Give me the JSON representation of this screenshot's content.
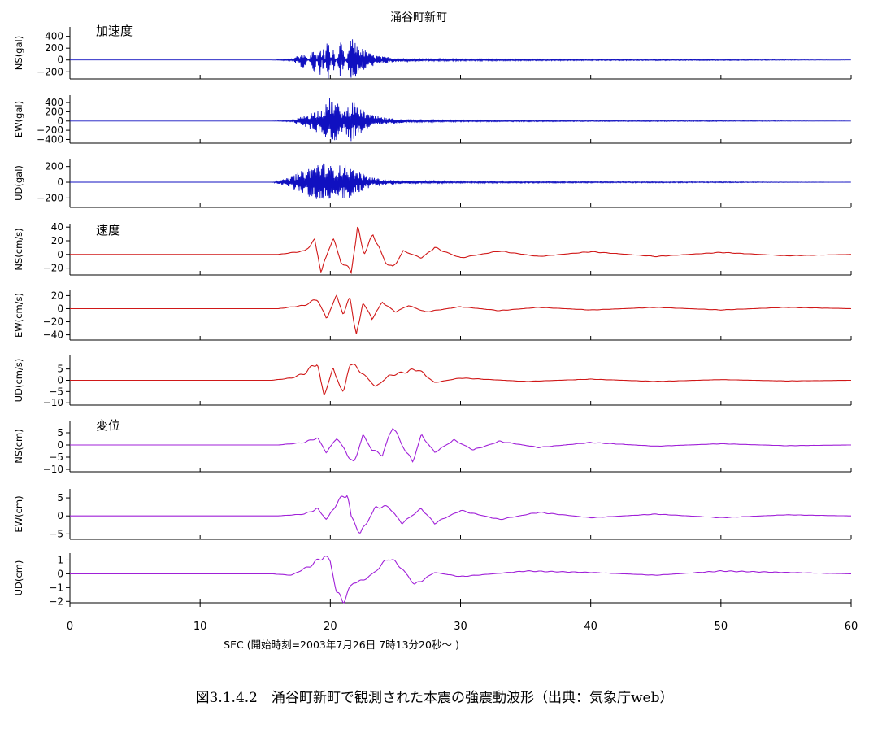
{
  "figure_caption": "図3.1.4.2　涌谷町新町で観測された本震の強震動波形（出典：気象庁web）",
  "chart_data": {
    "type": "line",
    "title": "涌谷町新町",
    "xlabel": "SEC (開始時刻=2003年7月26日 7時13分20秒～ )",
    "xlim": [
      0,
      60
    ],
    "x_ticks": [
      0,
      10,
      20,
      30,
      40,
      50,
      60
    ],
    "x_tick_labels": [
      "0",
      "10",
      "20",
      "30",
      "40",
      "50",
      "60"
    ],
    "grid": false,
    "groups": [
      {
        "label": "加速度",
        "color": "#1010c0"
      },
      {
        "label": "速度",
        "color": "#d01818"
      },
      {
        "label": "変位",
        "color": "#a020d8"
      }
    ],
    "panels": [
      {
        "ylabel": "NS(gal)",
        "ylim": [
          -320,
          560
        ],
        "yticks": [
          400,
          200,
          0,
          -200
        ],
        "ytick_labels": [
          "400",
          "200",
          "0",
          "−200"
        ],
        "color": "#1010c0",
        "series": {
          "name": "NS(gal)",
          "x": [
            0,
            15.5,
            17,
            18,
            18.8,
            19.2,
            19.5,
            19.8,
            20.2,
            20.8,
            21.2,
            21.6,
            22.2,
            23,
            24,
            26,
            30,
            40,
            50,
            60
          ],
          "y": [
            0,
            0,
            15,
            150,
            -240,
            300,
            -300,
            520,
            -260,
            320,
            0,
            380,
            240,
            120,
            60,
            25,
            15,
            10,
            8,
            0
          ]
        }
      },
      {
        "ylabel": "EW(gal)",
        "ylim": [
          -480,
          560
        ],
        "yticks": [
          400,
          200,
          0,
          -200,
          -400
        ],
        "ytick_labels": [
          "400",
          "200",
          "0",
          "−200",
          "−400"
        ],
        "color": "#1010c0",
        "series": {
          "name": "EW(gal)",
          "x": [
            0,
            15.5,
            17,
            18,
            19,
            19.5,
            20,
            20.5,
            21,
            21.6,
            22.2,
            23,
            24,
            26,
            30,
            40,
            50,
            60
          ],
          "y": [
            0,
            0,
            15,
            120,
            250,
            300,
            520,
            420,
            200,
            450,
            300,
            150,
            80,
            25,
            15,
            10,
            8,
            0
          ]
        }
      },
      {
        "ylabel": "UD(gal)",
        "ylim": [
          -320,
          300
        ],
        "yticks": [
          200,
          0,
          -200
        ],
        "ytick_labels": [
          "200",
          "0",
          "−200"
        ],
        "color": "#1010c0",
        "series": {
          "name": "UD(gal)",
          "x": [
            0,
            15.5,
            16.5,
            17.5,
            18.5,
            19.2,
            19.8,
            20.5,
            21,
            22,
            23,
            24,
            26,
            30,
            40,
            50,
            60
          ],
          "y": [
            0,
            0,
            40,
            120,
            200,
            280,
            220,
            200,
            240,
            150,
            70,
            40,
            20,
            12,
            8,
            6,
            0
          ]
        }
      },
      {
        "ylabel": "NS(cm/s)",
        "ylim": [
          -30,
          45
        ],
        "yticks": [
          40,
          20,
          0,
          -20
        ],
        "ytick_labels": [
          "40",
          "20",
          "0",
          "−20"
        ],
        "color": "#d01818",
        "series": {
          "name": "NS(cm/s)",
          "x": [
            0,
            16,
            18,
            18.8,
            19.3,
            20.2,
            20.8,
            21.6,
            22.1,
            22.6,
            23.3,
            24.2,
            24.8,
            25.6,
            27,
            28,
            30,
            33,
            36,
            40,
            45,
            50,
            55,
            60
          ],
          "y": [
            0,
            0,
            5,
            20,
            -25,
            25,
            -10,
            -25,
            38,
            0,
            30,
            -10,
            -20,
            5,
            -5,
            10,
            -5,
            5,
            -3,
            4,
            -3,
            3,
            -2,
            0
          ]
        }
      },
      {
        "ylabel": "EW(cm/s)",
        "ylim": [
          -48,
          28
        ],
        "yticks": [
          20,
          0,
          -20,
          -40
        ],
        "ytick_labels": [
          "20",
          "0",
          "−20",
          "−40"
        ],
        "color": "#d01818",
        "series": {
          "name": "EW(cm/s)",
          "x": [
            0,
            16,
            18,
            19,
            19.7,
            20.5,
            21,
            21.5,
            22,
            22.5,
            23.2,
            24,
            25,
            26,
            27.3,
            30,
            33,
            36,
            40,
            45,
            50,
            55,
            60
          ],
          "y": [
            0,
            0,
            5,
            15,
            -15,
            20,
            -10,
            20,
            -45,
            10,
            -15,
            10,
            -5,
            5,
            -5,
            3,
            -3,
            2,
            -2,
            2,
            -2,
            2,
            0
          ]
        }
      },
      {
        "ylabel": "UD(cm/s)",
        "ylim": [
          -11,
          11
        ],
        "yticks": [
          5,
          0,
          -5,
          -10
        ],
        "ytick_labels": [
          "5",
          "0",
          "−5",
          "−10"
        ],
        "color": "#d01818",
        "series": {
          "name": "UD(cm/s)",
          "x": [
            0,
            15.5,
            17,
            18,
            19,
            19.5,
            20.2,
            21,
            21.5,
            22.5,
            23.5,
            24.5,
            26.7,
            28,
            30,
            35,
            40,
            45,
            50,
            55,
            60
          ],
          "y": [
            0,
            0,
            1,
            3,
            8,
            -7,
            5,
            -6,
            8,
            3,
            -3,
            2,
            5,
            -1,
            1,
            -0.5,
            0.5,
            -0.5,
            0.3,
            -0.3,
            0
          ]
        }
      },
      {
        "ylabel": "NS(cm)",
        "ylim": [
          -11,
          10
        ],
        "yticks": [
          5,
          0,
          -5,
          -10
        ],
        "ytick_labels": [
          "5",
          "0",
          "−5",
          "−10"
        ],
        "color": "#a020d8",
        "series": {
          "name": "NS(cm)",
          "x": [
            0,
            16,
            18,
            19,
            19.7,
            20.5,
            21,
            21.8,
            22.5,
            23.2,
            24,
            24.8,
            25.5,
            26.3,
            27,
            28,
            29.5,
            31,
            33,
            36,
            40,
            45,
            50,
            55,
            60
          ],
          "y": [
            0,
            0,
            1,
            3,
            -3,
            3,
            -1,
            -8,
            4,
            -2,
            -4,
            8,
            0,
            -7,
            4,
            -3,
            2,
            -2,
            1.5,
            -1,
            1,
            -0.5,
            0.5,
            -0.3,
            0
          ]
        }
      },
      {
        "ylabel": "EW(cm)",
        "ylim": [
          -6.5,
          7.5
        ],
        "yticks": [
          5,
          0,
          -5
        ],
        "ytick_labels": [
          "5",
          "0",
          "−5"
        ],
        "color": "#a020d8",
        "series": {
          "name": "EW(cm)",
          "x": [
            0,
            16,
            18,
            19,
            19.7,
            20.5,
            21.3,
            21.6,
            22.3,
            23.5,
            24.5,
            25.5,
            27,
            28,
            30,
            33,
            36,
            40,
            45,
            50,
            55,
            60
          ],
          "y": [
            0,
            0,
            0.5,
            2,
            -1,
            3.5,
            6.5,
            0,
            -5,
            2.5,
            2.5,
            -2,
            2,
            -2,
            1.5,
            -1,
            1,
            -0.5,
            0.5,
            -0.5,
            0.3,
            0
          ]
        }
      },
      {
        "ylabel": "UD(cm)",
        "ylim": [
          -2.1,
          1.5
        ],
        "yticks": [
          1,
          0,
          -1,
          -2
        ],
        "ytick_labels": [
          "1",
          "0",
          "−1",
          "−2"
        ],
        "color": "#a020d8",
        "series": {
          "name": "UD(cm)",
          "x": [
            0,
            15.5,
            17,
            18.5,
            19.5,
            20,
            20.5,
            21,
            21.8,
            22.5,
            23.5,
            24.5,
            25.5,
            26.5,
            28,
            30,
            35,
            40,
            45,
            50,
            55,
            60
          ],
          "y": [
            0,
            0,
            -0.1,
            0.6,
            1.3,
            0.9,
            -1.5,
            -1.9,
            -0.6,
            -0.5,
            0.2,
            1.2,
            0.4,
            -0.8,
            0.1,
            -0.2,
            0.2,
            0.1,
            -0.1,
            0.2,
            0.1,
            0
          ]
        }
      }
    ]
  }
}
